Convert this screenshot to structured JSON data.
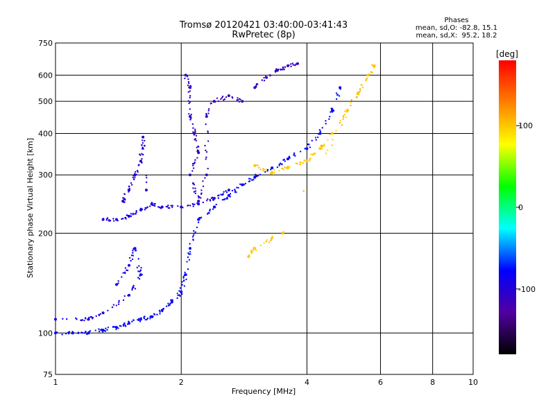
{
  "chart_data": {
    "type": "scatter",
    "title": "Tromsø 20120421 03:40:00-03:41:43",
    "subtitle": "RwPretec (8p)",
    "xlabel": "Frequency [MHz]",
    "ylabel": "Stationary phase Virtual Height [km]",
    "x_scale": "log",
    "y_scale": "log",
    "xlim": [
      1,
      10
    ],
    "ylim": [
      75,
      750
    ],
    "x_ticks": [
      1,
      2,
      4,
      6,
      8,
      10
    ],
    "y_ticks": [
      75,
      100,
      200,
      300,
      400,
      500,
      600,
      750
    ],
    "grid": true,
    "stats": {
      "heading": "Phases",
      "line1": "mean, sd,O: -82.8, 15.1",
      "line2": "mean, sd,X:  95.2, 18.2"
    },
    "colorbar": {
      "label": "[deg]",
      "range": [
        -180,
        180
      ],
      "ticks": [
        100,
        0,
        -100
      ],
      "colors": [
        "#ff0000",
        "#ff7f00",
        "#ffff00",
        "#00ff00",
        "#00ffff",
        "#0000ff",
        "#5000a0",
        "#000000"
      ]
    },
    "series": [
      {
        "phase": -80,
        "points": [
          [
            1.0,
            100
          ],
          [
            1.1,
            100
          ],
          [
            1.2,
            100
          ],
          [
            1.3,
            102
          ],
          [
            1.4,
            104
          ],
          [
            1.5,
            107
          ],
          [
            1.6,
            110
          ],
          [
            1.7,
            112
          ],
          [
            1.8,
            117
          ],
          [
            1.9,
            124
          ],
          [
            2.0,
            133
          ],
          [
            2.05,
            150
          ],
          [
            2.1,
            180
          ],
          [
            2.2,
            220
          ],
          [
            2.4,
            240
          ],
          [
            2.6,
            260
          ],
          [
            2.8,
            280
          ],
          [
            3.0,
            295
          ],
          [
            3.3,
            315
          ],
          [
            3.6,
            335
          ],
          [
            4.0,
            360
          ],
          [
            4.3,
            400
          ],
          [
            4.6,
            470
          ],
          [
            4.8,
            550
          ]
        ]
      },
      {
        "phase": -95,
        "points": [
          [
            1.3,
            220
          ],
          [
            1.4,
            220
          ],
          [
            1.5,
            225
          ],
          [
            1.6,
            235
          ],
          [
            1.7,
            245
          ],
          [
            1.8,
            240
          ],
          [
            2.0,
            240
          ],
          [
            2.2,
            245
          ],
          [
            2.4,
            255
          ],
          [
            2.6,
            270
          ]
        ]
      },
      {
        "phase": -100,
        "points": [
          [
            1.45,
            250
          ],
          [
            1.5,
            270
          ],
          [
            1.55,
            300
          ],
          [
            1.6,
            330
          ],
          [
            1.62,
            390
          ],
          [
            1.65,
            270
          ]
        ]
      },
      {
        "phase": -110,
        "points": [
          [
            3.0,
            550
          ],
          [
            3.2,
            590
          ],
          [
            3.4,
            620
          ],
          [
            3.6,
            640
          ],
          [
            3.8,
            650
          ]
        ]
      },
      {
        "phase": -110,
        "points": [
          [
            2.05,
            600
          ],
          [
            2.1,
            550
          ],
          [
            2.1,
            450
          ],
          [
            2.15,
            400
          ],
          [
            2.2,
            350
          ],
          [
            2.1,
            300
          ],
          [
            2.2,
            250
          ],
          [
            2.3,
            300
          ],
          [
            2.3,
            450
          ],
          [
            2.4,
            500
          ],
          [
            2.6,
            520
          ],
          [
            2.8,
            500
          ]
        ]
      },
      {
        "phase": 100,
        "points": [
          [
            3.0,
            320
          ],
          [
            3.3,
            305
          ],
          [
            3.6,
            315
          ],
          [
            4.0,
            330
          ],
          [
            4.3,
            360
          ],
          [
            4.6,
            400
          ],
          [
            5.0,
            470
          ],
          [
            5.3,
            530
          ],
          [
            5.6,
            600
          ],
          [
            5.8,
            640
          ],
          [
            3.5,
            200
          ],
          [
            3.0,
            180
          ],
          [
            2.9,
            170
          ]
        ]
      },
      {
        "phase": -90,
        "points": [
          [
            1.4,
            140
          ],
          [
            1.5,
            160
          ],
          [
            1.55,
            180
          ],
          [
            1.6,
            150
          ],
          [
            1.5,
            130
          ],
          [
            1.3,
            115
          ],
          [
            1.2,
            110
          ],
          [
            1.0,
            110
          ]
        ]
      }
    ]
  }
}
